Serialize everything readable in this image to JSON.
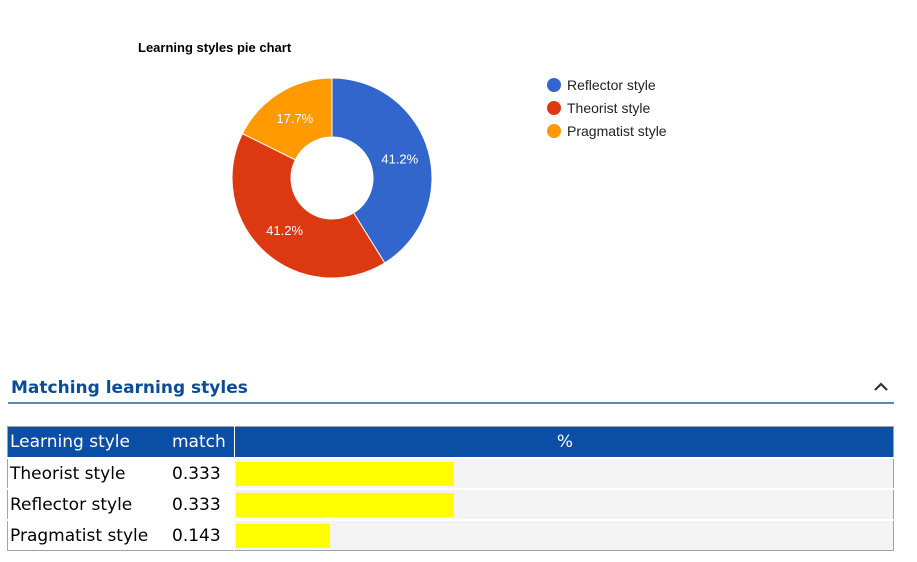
{
  "chart_data": {
    "type": "pie",
    "title": "Learning styles pie chart",
    "donut": true,
    "slices": [
      {
        "name": "Reflector style",
        "value": 41.2,
        "label": "41.2%",
        "color": "#3366cc"
      },
      {
        "name": "Theorist style",
        "value": 41.2,
        "label": "41.2%",
        "color": "#dc3912"
      },
      {
        "name": "Pragmatist style",
        "value": 17.7,
        "label": "17.7%",
        "color": "#ff9900"
      }
    ],
    "legend_placement": "right"
  },
  "section": {
    "title": "Matching learning styles"
  },
  "table": {
    "headers": {
      "style": "Learning style",
      "match": "match",
      "pct": "%"
    },
    "rows": [
      {
        "style": "Theorist style",
        "match": "0.333",
        "fraction": 0.333
      },
      {
        "style": "Reflector style",
        "match": "0.333",
        "fraction": 0.333
      },
      {
        "style": "Pragmatist style",
        "match": "0.143",
        "fraction": 0.143
      }
    ],
    "bar_color": "#ffff00"
  }
}
